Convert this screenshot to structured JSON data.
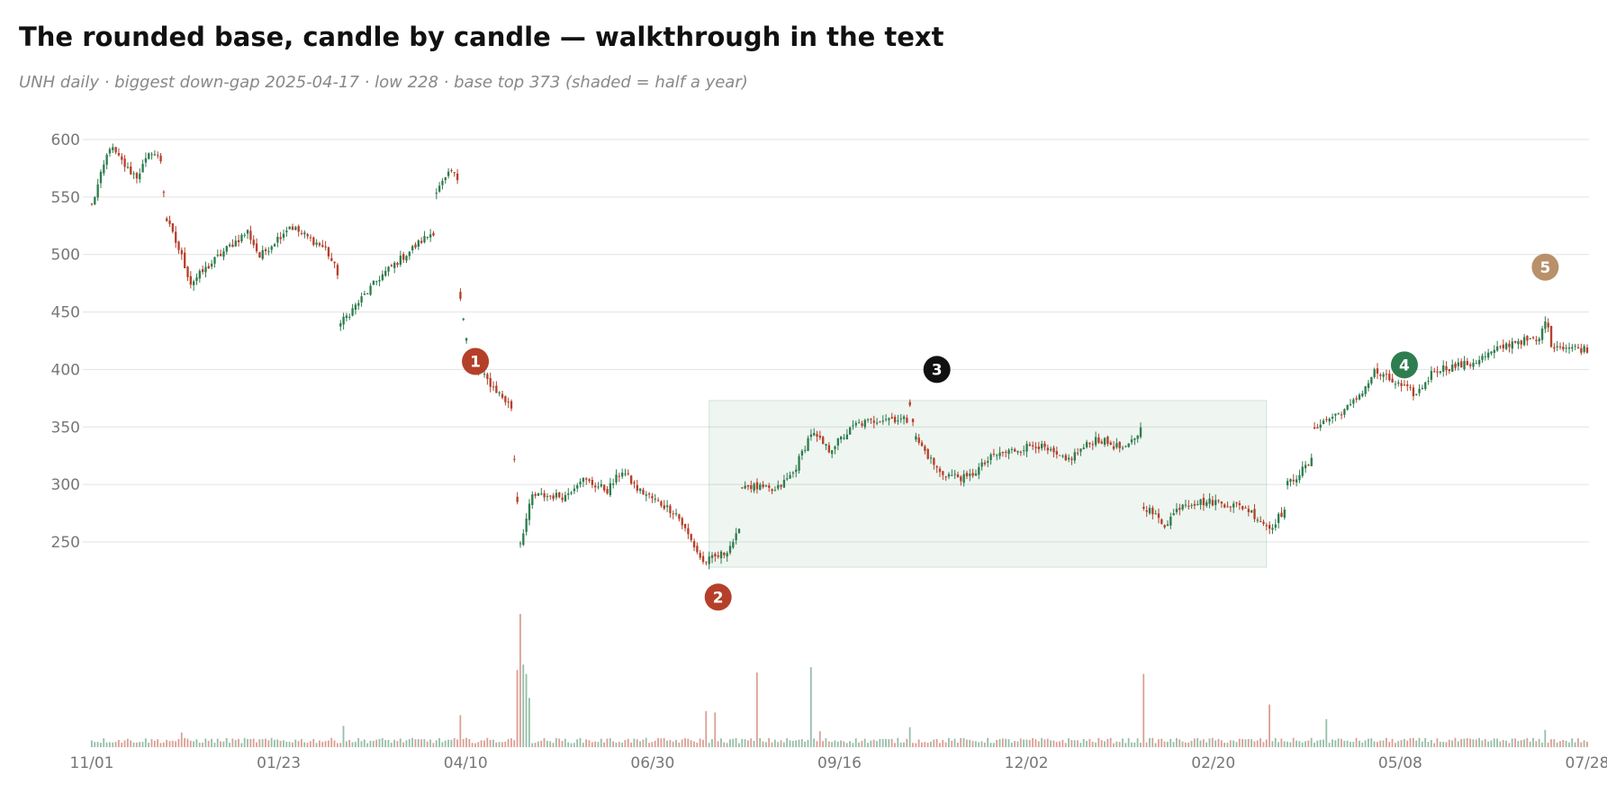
{
  "title": "The rounded base, candle by candle — walkthrough in the text",
  "subtitle": "UNH daily · biggest down-gap 2025-04-17 · low 228 · base top 373 (shaded = half a year)",
  "colors": {
    "up": "#2e7d4f",
    "down": "#b5402a",
    "grid": "#e2e2e2",
    "shade": "#2e7d4f",
    "tick": "#777777"
  },
  "chart_data": {
    "type": "candlestick",
    "ylim": [
      225,
      607
    ],
    "yticks": [
      600,
      550,
      500,
      450,
      400,
      350,
      300,
      250
    ],
    "xticks": [
      "11/01",
      "01/23",
      "04/10",
      "06/30",
      "09/16",
      "12/02",
      "02/20",
      "05/08",
      "07/28"
    ],
    "shaded_base": {
      "from_index": 206,
      "to_index": 392,
      "low": 228,
      "high": 373
    },
    "anchors": [
      {
        "i": 0,
        "p": 543
      },
      {
        "i": 6,
        "p": 594
      },
      {
        "i": 12,
        "p": 574
      },
      {
        "i": 15,
        "p": 568
      },
      {
        "i": 20,
        "p": 590
      },
      {
        "i": 23,
        "p": 582
      },
      {
        "i": 25,
        "p": 530
      },
      {
        "i": 30,
        "p": 498
      },
      {
        "i": 33,
        "p": 475
      },
      {
        "i": 45,
        "p": 505
      },
      {
        "i": 52,
        "p": 520
      },
      {
        "i": 56,
        "p": 498
      },
      {
        "i": 66,
        "p": 525
      },
      {
        "i": 72,
        "p": 515
      },
      {
        "i": 78,
        "p": 505
      },
      {
        "i": 82,
        "p": 484
      },
      {
        "i": 83,
        "p": 440
      },
      {
        "i": 96,
        "p": 480
      },
      {
        "i": 110,
        "p": 512
      },
      {
        "i": 114,
        "p": 520
      },
      {
        "i": 115,
        "p": 555
      },
      {
        "i": 120,
        "p": 572
      },
      {
        "i": 122,
        "p": 566
      },
      {
        "i": 123,
        "p": 465
      },
      {
        "i": 126,
        "p": 408
      },
      {
        "i": 140,
        "p": 367
      },
      {
        "i": 141,
        "p": 323
      },
      {
        "i": 143,
        "p": 250
      },
      {
        "i": 147,
        "p": 290
      },
      {
        "i": 158,
        "p": 290
      },
      {
        "i": 163,
        "p": 305
      },
      {
        "i": 172,
        "p": 295
      },
      {
        "i": 177,
        "p": 312
      },
      {
        "i": 182,
        "p": 296
      },
      {
        "i": 195,
        "p": 275
      },
      {
        "i": 204,
        "p": 232
      },
      {
        "i": 211,
        "p": 240
      },
      {
        "i": 216,
        "p": 258
      },
      {
        "i": 217,
        "p": 300
      },
      {
        "i": 228,
        "p": 294
      },
      {
        "i": 234,
        "p": 310
      },
      {
        "i": 240,
        "p": 345
      },
      {
        "i": 246,
        "p": 330
      },
      {
        "i": 255,
        "p": 352
      },
      {
        "i": 265,
        "p": 358
      },
      {
        "i": 272,
        "p": 356
      },
      {
        "i": 273,
        "p": 372
      },
      {
        "i": 275,
        "p": 340
      },
      {
        "i": 283,
        "p": 310
      },
      {
        "i": 292,
        "p": 305
      },
      {
        "i": 301,
        "p": 325
      },
      {
        "i": 315,
        "p": 335
      },
      {
        "i": 325,
        "p": 320
      },
      {
        "i": 335,
        "p": 340
      },
      {
        "i": 345,
        "p": 330
      },
      {
        "i": 350,
        "p": 348
      },
      {
        "i": 351,
        "p": 282
      },
      {
        "i": 358,
        "p": 265
      },
      {
        "i": 364,
        "p": 284
      },
      {
        "i": 375,
        "p": 285
      },
      {
        "i": 385,
        "p": 280
      },
      {
        "i": 393,
        "p": 262
      },
      {
        "i": 398,
        "p": 278
      },
      {
        "i": 399,
        "p": 300
      },
      {
        "i": 407,
        "p": 320
      },
      {
        "i": 408,
        "p": 350
      },
      {
        "i": 420,
        "p": 368
      },
      {
        "i": 425,
        "p": 385
      },
      {
        "i": 428,
        "p": 398
      },
      {
        "i": 442,
        "p": 378
      },
      {
        "i": 448,
        "p": 400
      },
      {
        "i": 460,
        "p": 405
      },
      {
        "i": 475,
        "p": 425
      },
      {
        "i": 483,
        "p": 425
      },
      {
        "i": 485,
        "p": 445
      },
      {
        "i": 487,
        "p": 422
      },
      {
        "i": 496,
        "p": 418
      }
    ],
    "volume_spikes": [
      {
        "i": 143,
        "v": 1.0
      },
      {
        "i": 142,
        "v": 0.58
      },
      {
        "i": 144,
        "v": 0.62
      },
      {
        "i": 145,
        "v": 0.55
      },
      {
        "i": 146,
        "v": 0.37
      },
      {
        "i": 123,
        "v": 0.24
      },
      {
        "i": 205,
        "v": 0.27
      },
      {
        "i": 208,
        "v": 0.26
      },
      {
        "i": 222,
        "v": 0.56
      },
      {
        "i": 240,
        "v": 0.6
      },
      {
        "i": 351,
        "v": 0.55
      },
      {
        "i": 393,
        "v": 0.32
      },
      {
        "i": 412,
        "v": 0.21
      },
      {
        "i": 485,
        "v": 0.13
      },
      {
        "i": 30,
        "v": 0.11
      },
      {
        "i": 84,
        "v": 0.16
      },
      {
        "i": 243,
        "v": 0.12
      },
      {
        "i": 273,
        "v": 0.15
      }
    ],
    "markers": [
      {
        "label": "1",
        "i": 128,
        "p": 407,
        "color": "#b5402a"
      },
      {
        "label": "2",
        "i": 209,
        "p": 202,
        "color": "#b5402a"
      },
      {
        "label": "3",
        "i": 282,
        "p": 400,
        "color": "#111111"
      },
      {
        "label": "4",
        "i": 438,
        "p": 404,
        "color": "#2e7d4f"
      },
      {
        "label": "5",
        "i": 485,
        "p": 489,
        "color": "#b8906a"
      }
    ]
  }
}
